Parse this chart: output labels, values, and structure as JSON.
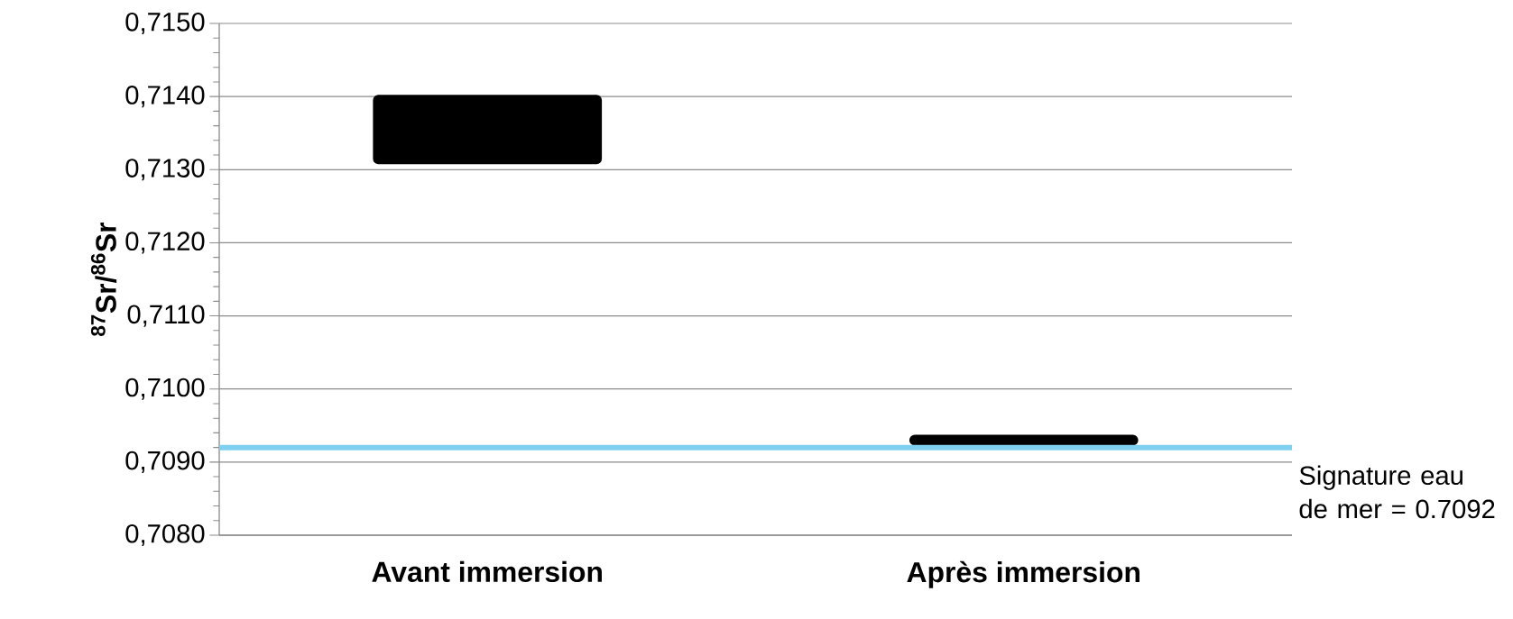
{
  "chart_data": {
    "type": "bar",
    "categories": [
      "Avant immersion",
      "Après immersion"
    ],
    "values": [
      0.0009,
      0.0001
    ],
    "base": [
      0.7131,
      0.70925
    ],
    "color": "#000000",
    "ylabel": "$^{87}$Sr/$^{86}$Sr",
    "ylim": [
      0.708,
      0.715
    ],
    "yticks": [
      {
        "value": 0.708,
        "label": "0,7080"
      },
      {
        "value": 0.709,
        "label": "0,7090"
      },
      {
        "value": 0.71,
        "label": "0,7100"
      },
      {
        "value": 0.711,
        "label": "0,7110"
      },
      {
        "value": 0.712,
        "label": "0,7120"
      },
      {
        "value": 0.713,
        "label": "0,7130"
      },
      {
        "value": 0.714,
        "label": "0,7140"
      },
      {
        "value": 0.715,
        "label": "0,7150"
      }
    ],
    "grid": "y",
    "ref_lines": [
      {
        "axis": "y",
        "value": 0.7092,
        "label": "Signature eau de mer = 0.7092",
        "color": "#7fd0f0"
      }
    ]
  }
}
